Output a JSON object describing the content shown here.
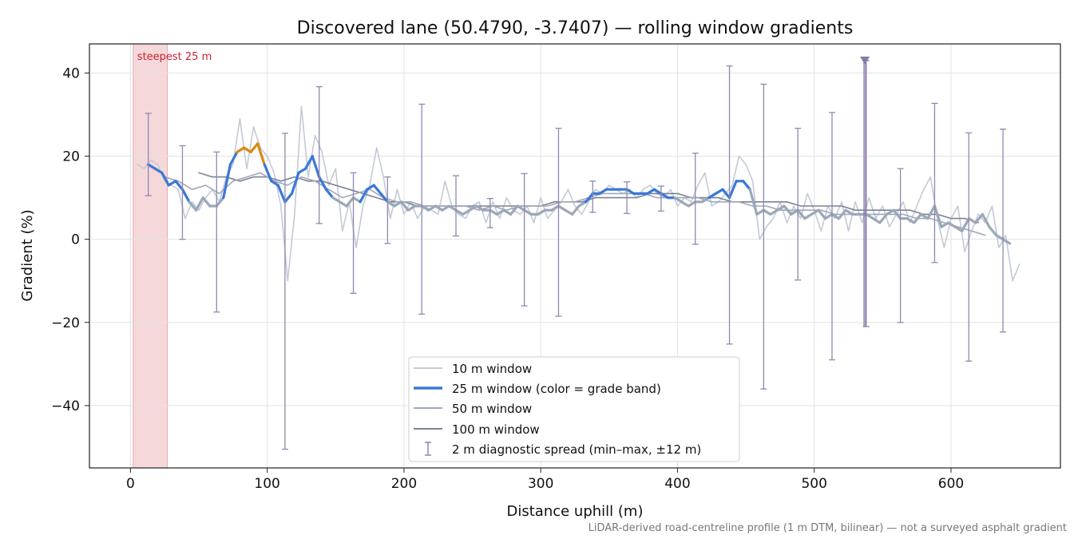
{
  "chart_data": {
    "type": "line",
    "title": "Discovered lane (50.4790, -3.7407) — rolling window gradients",
    "xlabel": "Distance uphill (m)",
    "ylabel": "Gradient (%)",
    "xlim": [
      -30,
      680
    ],
    "ylim": [
      -55,
      47
    ],
    "xticks": [
      0,
      100,
      200,
      300,
      400,
      500,
      600
    ],
    "yticks": [
      -40,
      -20,
      0,
      20,
      40
    ],
    "xtick_labels": [
      "0",
      "100",
      "200",
      "300",
      "400",
      "500",
      "600"
    ],
    "ytick_labels": [
      "−40",
      "−20",
      "0",
      "20",
      "40"
    ],
    "grid": true,
    "legend_position": "lower-center",
    "footnote": "LiDAR-derived road-centreline profile (1 m DTM, bilinear) — not a surveyed asphalt gradient",
    "annotation": {
      "text": "steepest 25 m",
      "x_start": 2,
      "x_end": 27,
      "color": "#cc2233"
    },
    "marker": {
      "x": 537,
      "y": 43,
      "low": -21,
      "color": "#8877aa"
    },
    "colors": {
      "w10": "#c3cad6",
      "w25": "#9aa8b8",
      "w50": "#a0a8bb",
      "w100": "#7a8294",
      "band_low": "#9aa8b8",
      "band_mid": "#3a78d8",
      "band_high": "#d98a10",
      "diag": "#9088b0",
      "shade": "#f5d8da"
    },
    "legend": [
      "10 m window",
      "25 m window (color = grade band)",
      "50 m window",
      "100 m window",
      "2 m diagnostic spread (min–max, ±12 m)"
    ],
    "series": [
      {
        "name": "10 m window",
        "x": [
          5,
          10,
          15,
          20,
          25,
          30,
          35,
          40,
          45,
          50,
          55,
          60,
          65,
          70,
          75,
          80,
          85,
          90,
          95,
          100,
          105,
          110,
          115,
          120,
          125,
          130,
          135,
          140,
          145,
          150,
          155,
          160,
          165,
          170,
          175,
          180,
          185,
          190,
          195,
          200,
          205,
          210,
          215,
          220,
          225,
          230,
          235,
          240,
          245,
          250,
          255,
          260,
          265,
          270,
          275,
          280,
          285,
          290,
          295,
          300,
          305,
          310,
          315,
          320,
          325,
          330,
          335,
          340,
          345,
          350,
          355,
          360,
          365,
          370,
          375,
          380,
          385,
          390,
          395,
          400,
          405,
          410,
          415,
          420,
          425,
          430,
          435,
          440,
          445,
          450,
          455,
          460,
          465,
          470,
          475,
          480,
          485,
          490,
          495,
          500,
          505,
          510,
          515,
          520,
          525,
          530,
          535,
          540,
          545,
          550,
          555,
          560,
          565,
          570,
          575,
          580,
          585,
          590,
          595,
          600,
          605,
          610,
          615,
          620,
          625,
          630,
          635,
          640,
          645,
          650
        ],
        "y": [
          18,
          17,
          19,
          18,
          14,
          13,
          12,
          5,
          9,
          7,
          10,
          12,
          9,
          15,
          18,
          29,
          17,
          27,
          22,
          20,
          16,
          8,
          -10,
          6,
          32,
          15,
          25,
          21,
          13,
          17,
          2,
          9,
          -2,
          8,
          13,
          22,
          15,
          5,
          12,
          6,
          9,
          5,
          8,
          7,
          6,
          14,
          8,
          6,
          5,
          8,
          9,
          4,
          9,
          5,
          10,
          7,
          6,
          8,
          4,
          10,
          5,
          7,
          9,
          12,
          8,
          6,
          9,
          12,
          11,
          13,
          12,
          11,
          12,
          10,
          12,
          13,
          11,
          10,
          12,
          8,
          10,
          9,
          13,
          16,
          8,
          9,
          11,
          13,
          20,
          18,
          14,
          0,
          3,
          5,
          9,
          4,
          8,
          5,
          11,
          7,
          2,
          8,
          5,
          9,
          2,
          9,
          4,
          10,
          5,
          8,
          3,
          6,
          9,
          4,
          8,
          12,
          15,
          5,
          -2,
          5,
          8,
          -3,
          2,
          6,
          4,
          8,
          -2,
          1,
          -10,
          -6
        ]
      },
      {
        "name": "25 m window (color = grade band)",
        "x": [
          13,
          18,
          23,
          28,
          33,
          38,
          43,
          48,
          53,
          58,
          63,
          68,
          73,
          78,
          83,
          88,
          93,
          98,
          103,
          108,
          113,
          118,
          123,
          128,
          133,
          138,
          143,
          148,
          153,
          158,
          163,
          168,
          173,
          178,
          183,
          188,
          193,
          198,
          203,
          208,
          213,
          218,
          223,
          228,
          233,
          238,
          243,
          248,
          253,
          258,
          263,
          268,
          273,
          278,
          283,
          288,
          293,
          298,
          303,
          308,
          313,
          318,
          323,
          328,
          333,
          338,
          343,
          348,
          353,
          358,
          363,
          368,
          373,
          378,
          383,
          388,
          393,
          398,
          403,
          408,
          413,
          418,
          423,
          428,
          433,
          438,
          443,
          448,
          453,
          458,
          463,
          468,
          473,
          478,
          483,
          488,
          493,
          498,
          503,
          508,
          513,
          518,
          523,
          528,
          533,
          538,
          543,
          548,
          553,
          558,
          563,
          568,
          573,
          578,
          583,
          588,
          593,
          598,
          603,
          608,
          613,
          618,
          623,
          628,
          633,
          638,
          643
        ],
        "y": [
          18,
          17,
          16,
          13,
          14,
          12,
          9,
          7,
          10,
          8,
          8,
          10,
          18,
          21,
          22,
          21,
          23,
          18,
          14,
          13,
          9,
          11,
          16,
          17,
          20,
          15,
          12,
          10,
          9,
          8,
          10,
          9,
          12,
          13,
          11,
          9,
          8,
          9,
          7,
          8,
          8,
          7,
          8,
          7,
          8,
          7,
          6,
          7,
          8,
          7,
          7,
          6,
          7,
          6,
          8,
          7,
          6,
          6,
          7,
          7,
          8,
          7,
          6,
          8,
          9,
          11,
          11,
          12,
          12,
          12,
          12,
          11,
          11,
          11,
          12,
          11,
          10,
          10,
          9,
          8,
          9,
          9,
          10,
          11,
          12,
          10,
          14,
          14,
          12,
          6,
          7,
          6,
          7,
          8,
          6,
          7,
          5,
          6,
          7,
          5,
          6,
          5,
          7,
          6,
          6,
          6,
          5,
          4,
          6,
          7,
          5,
          5,
          4,
          6,
          5,
          8,
          3,
          4,
          3,
          2,
          5,
          4,
          6,
          3,
          1,
          0,
          -1
        ]
      },
      {
        "name": "50 m window",
        "x": [
          25,
          35,
          45,
          55,
          65,
          75,
          85,
          95,
          105,
          115,
          125,
          135,
          145,
          155,
          165,
          175,
          185,
          195,
          205,
          215,
          225,
          235,
          245,
          255,
          265,
          275,
          285,
          295,
          305,
          315,
          325,
          335,
          345,
          355,
          365,
          375,
          385,
          395,
          405,
          415,
          425,
          435,
          445,
          455,
          465,
          475,
          485,
          495,
          505,
          515,
          525,
          535,
          545,
          555,
          565,
          575,
          585,
          595,
          605,
          615,
          625
        ],
        "y": [
          15,
          14,
          12,
          13,
          11,
          14,
          15,
          16,
          14,
          13,
          15,
          14,
          12,
          10,
          11,
          12,
          10,
          9,
          9,
          8,
          8,
          8,
          8,
          7,
          8,
          7,
          8,
          8,
          8,
          9,
          9,
          10,
          11,
          11,
          11,
          11,
          10,
          10,
          10,
          10,
          9,
          9,
          9,
          8,
          8,
          7,
          7,
          7,
          7,
          6,
          6,
          6,
          6,
          6,
          6,
          5,
          5,
          4,
          3,
          2,
          1
        ]
      },
      {
        "name": "100 m window",
        "x": [
          50,
          60,
          70,
          80,
          90,
          100,
          110,
          120,
          130,
          140,
          150,
          160,
          170,
          180,
          190,
          200,
          210,
          220,
          230,
          240,
          250,
          260,
          270,
          280,
          290,
          300,
          310,
          320,
          330,
          340,
          350,
          360,
          370,
          380,
          390,
          400,
          410,
          420,
          430,
          440,
          450,
          460,
          470,
          480,
          490,
          500,
          510,
          520,
          530,
          540,
          550,
          560,
          570,
          580,
          590,
          600,
          610,
          620
        ],
        "y": [
          16,
          15,
          15,
          14,
          15,
          15,
          14,
          15,
          14,
          14,
          13,
          12,
          11,
          10,
          9,
          9,
          8,
          8,
          8,
          8,
          8,
          8,
          8,
          8,
          8,
          8,
          9,
          9,
          9,
          10,
          10,
          10,
          10,
          11,
          11,
          11,
          10,
          10,
          10,
          9,
          9,
          9,
          9,
          9,
          8,
          8,
          8,
          8,
          7,
          7,
          7,
          7,
          7,
          6,
          6,
          5,
          5,
          4
        ]
      },
      {
        "name": "2 m diagnostic spread (min–max, ±12 m)",
        "x": [
          13,
          38,
          63,
          113,
          138,
          163,
          188,
          213,
          238,
          263,
          288,
          313,
          338,
          363,
          388,
          413,
          438,
          463,
          488,
          513,
          538,
          563,
          588,
          613,
          638
        ],
        "low": [
          10.5,
          0,
          -17.5,
          -50.5,
          3.8,
          -13,
          -1,
          -18,
          0.8,
          2.8,
          -16,
          -18.5,
          6.5,
          6.2,
          6.8,
          -1.2,
          -25.2,
          -36,
          -9.8,
          -29,
          -21,
          -20,
          -5.6,
          -29.3,
          -22.3
        ],
        "high": [
          30.3,
          22.5,
          21,
          25.5,
          36.7,
          16,
          15,
          32.5,
          15.3,
          9.8,
          15.8,
          26.7,
          14,
          13.8,
          12.8,
          20.7,
          41.7,
          37.3,
          26.7,
          30.5,
          43,
          17,
          32.7,
          25.6,
          26.5
        ]
      }
    ]
  }
}
